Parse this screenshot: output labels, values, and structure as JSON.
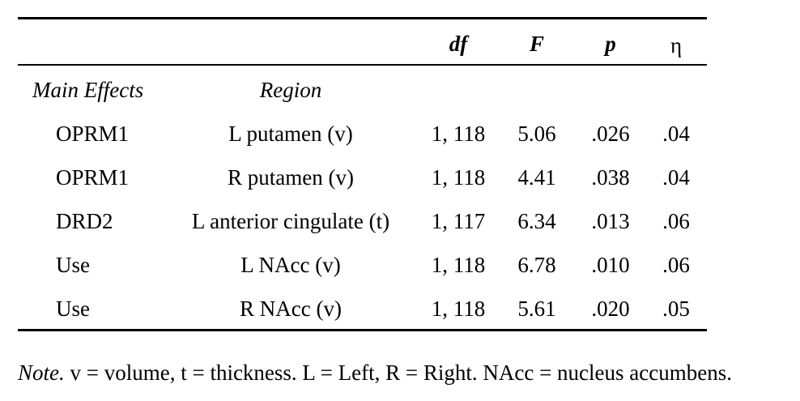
{
  "table": {
    "headers": {
      "df": "df",
      "F": "F",
      "p": "p",
      "eta": "η"
    },
    "subheaders": {
      "effects": "Main Effects",
      "region": "Region"
    },
    "rows": [
      {
        "effect": "OPRM1",
        "region": "L putamen (v)",
        "df": "1, 118",
        "F": "5.06",
        "p": ".026",
        "eta": ".04"
      },
      {
        "effect": "OPRM1",
        "region": "R putamen (v)",
        "df": "1, 118",
        "F": "4.41",
        "p": ".038",
        "eta": ".04"
      },
      {
        "effect": "DRD2",
        "region": "L anterior cingulate (t)",
        "df": "1, 117",
        "F": "6.34",
        "p": ".013",
        "eta": ".06"
      },
      {
        "effect": "Use",
        "region": "L NAcc (v)",
        "df": "1, 118",
        "F": "6.78",
        "p": ".010",
        "eta": ".06"
      },
      {
        "effect": "Use",
        "region": "R NAcc (v)",
        "df": "1, 118",
        "F": "5.61",
        "p": ".020",
        "eta": ".05"
      }
    ]
  },
  "note": {
    "label": "Note.",
    "text": " v = volume, t = thickness. L = Left, R = Right. NAcc = nucleus accumbens."
  }
}
